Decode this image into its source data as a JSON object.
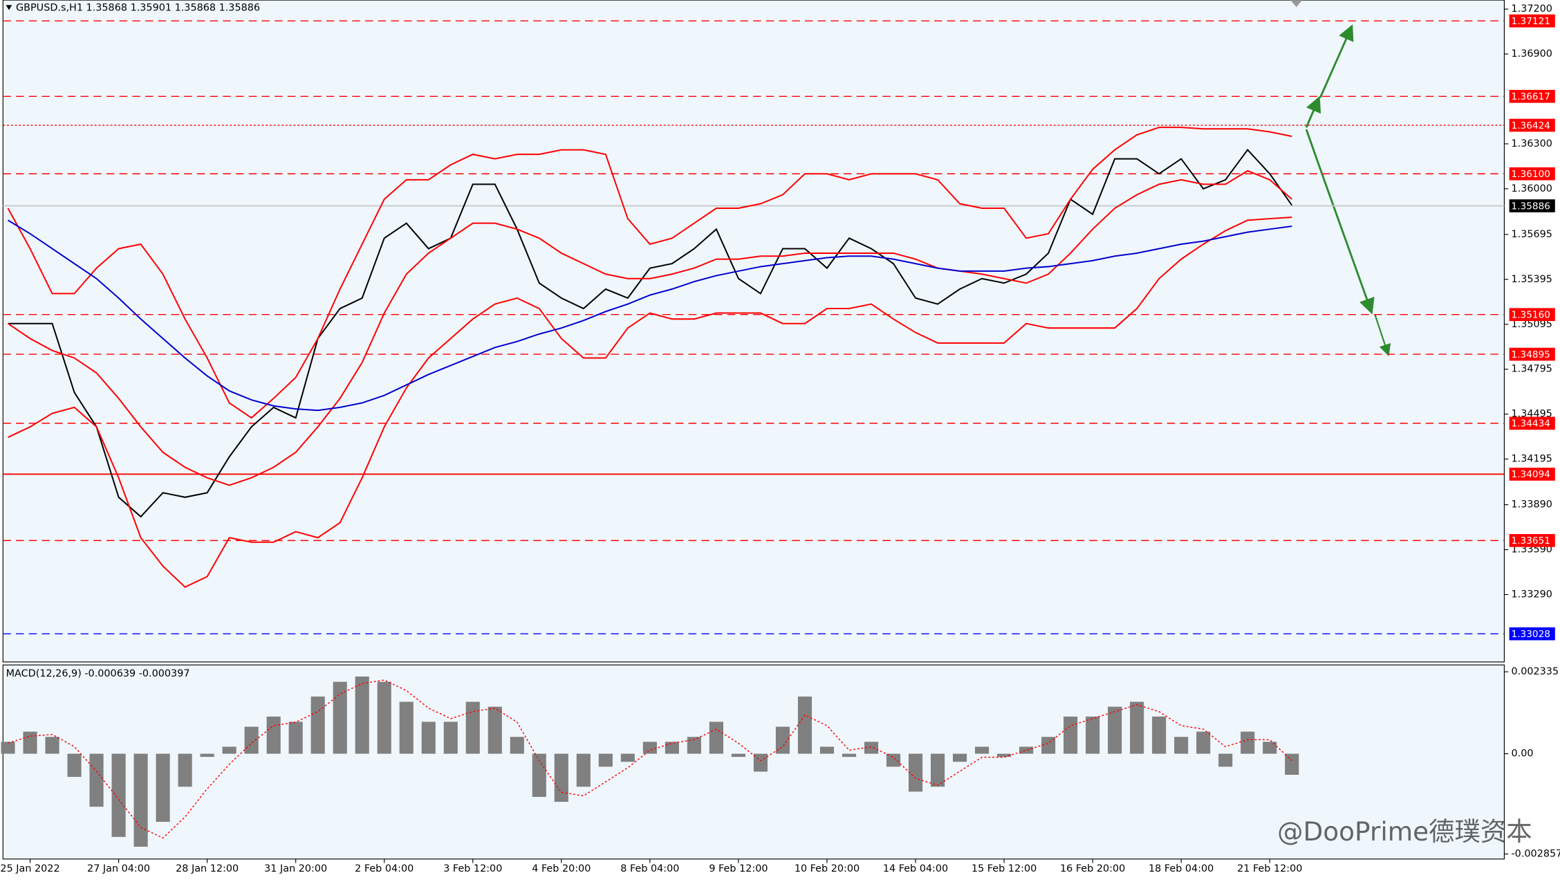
{
  "chart_data": [
    {
      "type": "line",
      "title": "GBPUSD.s,H1  1.35868 1.35901 1.35868 1.35886",
      "categories": [
        null,
        "25 Jan 2022",
        null,
        null,
        null,
        "27 Jan 04:00",
        null,
        null,
        null,
        "28 Jan 12:00",
        null,
        null,
        null,
        "31 Jan 20:00",
        null,
        null,
        null,
        "2 Feb 04:00",
        null,
        null,
        null,
        "3 Feb 12:00",
        null,
        null,
        null,
        "4 Feb 20:00",
        null,
        null,
        null,
        "8 Feb 04:00",
        null,
        null,
        null,
        "9 Feb 12:00",
        null,
        null,
        null,
        "10 Feb 20:00",
        null,
        null,
        null,
        "14 Feb 04:00",
        null,
        null,
        null,
        "15 Feb 12:00",
        null,
        null,
        null,
        "16 Feb 20:00",
        null,
        null,
        null,
        "18 Feb 04:00",
        null,
        null,
        null,
        "21 Feb 12:00",
        null
      ],
      "series": [
        {
          "color": "#000000",
          "values": [
            1.351,
            1.351,
            1.351,
            1.3464,
            1.3441,
            1.3394,
            1.3381,
            1.3397,
            1.3394,
            1.3397,
            1.3421,
            1.3441,
            1.3454,
            1.3447,
            1.35,
            1.352,
            1.3527,
            1.3567,
            1.3577,
            1.356,
            1.3567,
            1.3603,
            1.3603,
            1.3573,
            1.3537,
            1.3527,
            1.352,
            1.3533,
            1.3527,
            1.3547,
            1.355,
            1.356,
            1.3573,
            1.354,
            1.353,
            1.356,
            1.356,
            1.3547,
            1.3567,
            1.356,
            1.355,
            1.3527,
            1.3523,
            1.3533,
            1.354,
            1.3537,
            1.3543,
            1.3557,
            1.3593,
            1.3583,
            1.362,
            1.362,
            1.361,
            1.362,
            1.36,
            1.3606,
            1.3626,
            1.361,
            1.3589
          ]
        },
        {
          "color": "#ff0000",
          "values": [
            1.3587,
            1.356,
            1.353,
            1.353,
            1.3547,
            1.356,
            1.3563,
            1.3543,
            1.3513,
            1.3487,
            1.3457,
            1.3447,
            1.346,
            1.3474,
            1.35,
            1.3533,
            1.3563,
            1.3593,
            1.3606,
            1.3606,
            1.3616,
            1.3623,
            1.362,
            1.3623,
            1.3623,
            1.3626,
            1.3626,
            1.3623,
            1.358,
            1.3563,
            1.3567,
            1.3577,
            1.3587,
            1.3587,
            1.359,
            1.3596,
            1.361,
            1.361,
            1.3606,
            1.361,
            1.361,
            1.361,
            1.3606,
            1.359,
            1.3587,
            1.3587,
            1.3567,
            1.357,
            1.3593,
            1.3613,
            1.3626,
            1.3636,
            1.3641,
            1.3641,
            1.364,
            1.364,
            1.364,
            1.3638,
            1.3635
          ]
        },
        {
          "color": "#ff0000",
          "values": [
            1.351,
            1.35,
            1.3492,
            1.3487,
            1.3477,
            1.346,
            1.3441,
            1.3424,
            1.3414,
            1.3407,
            1.3402,
            1.3407,
            1.3414,
            1.3424,
            1.3441,
            1.346,
            1.3484,
            1.3517,
            1.3543,
            1.3557,
            1.3567,
            1.3577,
            1.3577,
            1.3573,
            1.3567,
            1.3557,
            1.355,
            1.3543,
            1.354,
            1.354,
            1.3543,
            1.3547,
            1.3553,
            1.3553,
            1.3555,
            1.3555,
            1.3557,
            1.3557,
            1.3557,
            1.3557,
            1.3557,
            1.3553,
            1.3547,
            1.3545,
            1.3543,
            1.354,
            1.3537,
            1.3543,
            1.3557,
            1.3573,
            1.3587,
            1.3596,
            1.3603,
            1.3606,
            1.3603,
            1.3603,
            1.3612,
            1.3606,
            1.3593
          ]
        },
        {
          "color": "#ff0000",
          "values": [
            1.3434,
            1.3441,
            1.345,
            1.3454,
            1.3441,
            1.3407,
            1.3367,
            1.3348,
            1.3334,
            1.3341,
            1.3367,
            1.3364,
            1.3364,
            1.3371,
            1.3367,
            1.3377,
            1.3407,
            1.3441,
            1.3467,
            1.3487,
            1.35,
            1.3513,
            1.3523,
            1.3527,
            1.352,
            1.35,
            1.3487,
            1.3487,
            1.3507,
            1.3517,
            1.3513,
            1.3513,
            1.3517,
            1.3517,
            1.3517,
            1.351,
            1.351,
            1.352,
            1.352,
            1.3523,
            1.3513,
            1.3504,
            1.3497,
            1.3497,
            1.3497,
            1.3497,
            1.351,
            1.3507,
            1.3507,
            1.3507,
            1.3507,
            1.352,
            1.354,
            1.3553,
            1.3563,
            1.3572,
            1.3579,
            1.358,
            1.3581
          ]
        },
        {
          "color": "#0000cd",
          "values": [
            1.3579,
            1.357,
            1.356,
            1.355,
            1.354,
            1.3527,
            1.3513,
            1.35,
            1.3487,
            1.3475,
            1.3465,
            1.3459,
            1.3455,
            1.3453,
            1.3452,
            1.3454,
            1.3457,
            1.3462,
            1.3469,
            1.3476,
            1.3482,
            1.3488,
            1.3494,
            1.3498,
            1.3503,
            1.3507,
            1.3512,
            1.3518,
            1.3523,
            1.3529,
            1.3533,
            1.3538,
            1.3542,
            1.3545,
            1.3548,
            1.355,
            1.3552,
            1.3554,
            1.3555,
            1.3555,
            1.3553,
            1.355,
            1.3547,
            1.3545,
            1.3545,
            1.3545,
            1.3547,
            1.3548,
            1.355,
            1.3552,
            1.3555,
            1.3557,
            1.356,
            1.3563,
            1.3565,
            1.3568,
            1.3571,
            1.3573,
            1.3575
          ]
        }
      ],
      "ylim": [
        1.3284,
        1.3726
      ],
      "yticks": [
        {
          "value": 1.372,
          "label": "1.37200"
        },
        {
          "value": 1.369,
          "label": "1.36900"
        },
        {
          "value": 1.363,
          "label": "1.36300"
        },
        {
          "value": 1.36,
          "label": "1.36000"
        },
        1.35695,
        1.35395,
        1.35095,
        1.34795,
        1.34495,
        1.34195,
        {
          "value": 1.3389,
          "label": "1.33890"
        },
        {
          "value": 1.3359,
          "label": "1.33590"
        },
        {
          "value": 1.3329,
          "label": "1.33290"
        }
      ],
      "levels": [
        {
          "value": 1.37121,
          "label": "1.37121",
          "style": "dashed",
          "color": "#ff0000",
          "line_color": "#ff0000"
        },
        {
          "value": 1.36617,
          "label": "1.36617",
          "style": "dashed",
          "color": "#ff0000",
          "line_color": "#ff0000"
        },
        {
          "value": 1.36424,
          "label": "1.36424",
          "style": "dotted",
          "color": "#ff0000",
          "line_color": "#ff0000"
        },
        {
          "value": 1.361,
          "label": "1.36100",
          "style": "dashed",
          "color": "#ff0000",
          "line_color": "#ff0000"
        },
        {
          "value": 1.35886,
          "label": "1.35886",
          "style": "solid",
          "color": "#000000",
          "line_color": "#c8c8c8"
        },
        {
          "value": 1.3516,
          "label": "1.35160",
          "style": "dashed",
          "color": "#ff0000",
          "line_color": "#ff0000"
        },
        {
          "value": 1.34895,
          "label": "1.34895",
          "style": "dashed",
          "color": "#ff0000",
          "line_color": "#ff0000"
        },
        {
          "value": 1.34434,
          "label": "1.34434",
          "style": "dashed",
          "color": "#ff0000",
          "line_color": "#ff0000"
        },
        {
          "value": 1.34094,
          "label": "1.34094",
          "style": "solid",
          "color": "#ff0000",
          "line_color": "#ff0000"
        },
        {
          "value": 1.33651,
          "label": "1.33651",
          "style": "dashed",
          "color": "#ff0000",
          "line_color": "#ff0000"
        },
        {
          "value": 1.33028,
          "label": "1.33028",
          "style": "dashed",
          "color": "#0000ff",
          "line_color": "#0000ff"
        }
      ]
    },
    {
      "type": "bar",
      "title": "MACD(12,26,9) -0.000639 -0.000397",
      "series": [
        {
          "type": "bar",
          "color": "#808080",
          "values": [
            0.00034,
            0.00063,
            0.00048,
            -0.00066,
            -0.00151,
            -0.00237,
            -0.00265,
            -0.00194,
            -0.00094,
            -9e-05,
            0.0002,
            0.00077,
            0.00106,
            0.00091,
            0.00163,
            0.00205,
            0.0022,
            0.00205,
            0.00148,
            0.00091,
            0.00091,
            0.00148,
            0.00134,
            0.00048,
            -0.00123,
            -0.00137,
            -0.00094,
            -0.00037,
            -0.00023,
            0.00034,
            0.00034,
            0.00048,
            0.00091,
            -9e-05,
            -0.00051,
            0.00077,
            0.00163,
            0.0002,
            -9e-05,
            0.00034,
            -0.00037,
            -0.00108,
            -0.00094,
            -0.00023,
            0.0002,
            -9e-05,
            0.0002,
            0.00048,
            0.00106,
            0.00106,
            0.00134,
            0.00148,
            0.00106,
            0.00048,
            0.00063,
            -0.00037,
            0.00063,
            0.00034,
            -0.0006
          ]
        },
        {
          "type": "line",
          "color": "#ff0000",
          "values": [
            0.0003,
            0.0005,
            0.00055,
            0.0002,
            -0.0005,
            -0.0013,
            -0.0021,
            -0.0024,
            -0.0018,
            -0.001,
            -0.0003,
            0.0003,
            0.0008,
            0.0009,
            0.0012,
            0.0017,
            0.002,
            0.0021,
            0.0018,
            0.0013,
            0.001,
            0.0012,
            0.0013,
            0.0009,
            -0.0002,
            -0.0011,
            -0.0012,
            -0.0008,
            -0.0004,
            0.0001,
            0.0003,
            0.0004,
            0.0007,
            0.0003,
            -0.0002,
            0.0002,
            0.0011,
            0.0008,
            0.0001,
            0.0002,
            -0.0001,
            -0.0007,
            -0.0009,
            -0.0005,
            -0.0001,
            -0.0001,
            0.0001,
            0.0003,
            0.0008,
            0.001,
            0.0012,
            0.0014,
            0.0012,
            0.0008,
            0.0007,
            0.0002,
            0.0004,
            0.0004,
            -0.0002
          ]
        }
      ],
      "ylim": [
        -0.003,
        0.00253
      ],
      "yticks": [
        0.002335,
        {
          "value": 0,
          "label": "0.00"
        },
        -0.002857
      ]
    }
  ],
  "watermark": "@DooPrime德璞资本"
}
